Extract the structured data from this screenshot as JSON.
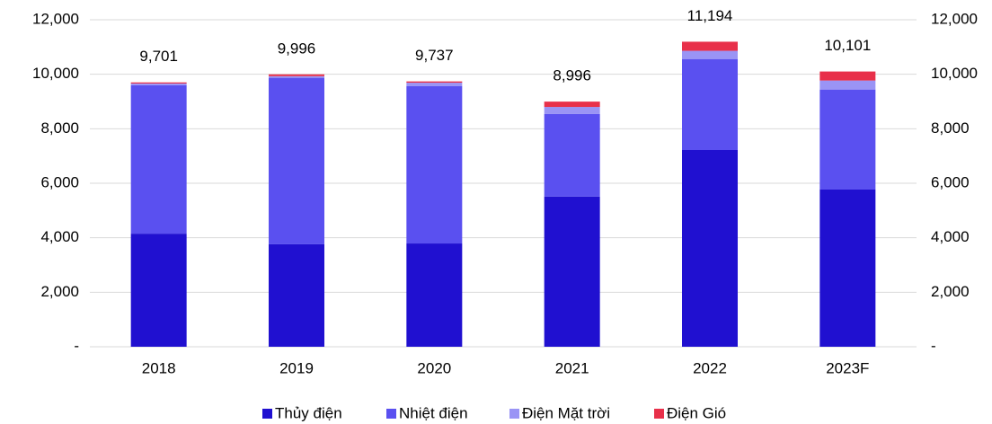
{
  "chart_data": {
    "type": "stacked_bar",
    "categories": [
      "2018",
      "2019",
      "2020",
      "2021",
      "2022",
      "2023F"
    ],
    "series": [
      {
        "name": "Thủy điện",
        "color": "#2010d0",
        "values": [
          4150,
          3760,
          3790,
          5510,
          7220,
          5770
        ]
      },
      {
        "name": "Nhiệt điện",
        "color": "#5a50f0",
        "values": [
          5450,
          6110,
          5780,
          3030,
          3340,
          3670
        ]
      },
      {
        "name": "Điện Mặt trời",
        "color": "#9a94f5",
        "values": [
          60,
          60,
          120,
          260,
          300,
          330
        ]
      },
      {
        "name": "Điện Gió",
        "color": "#e8304a",
        "values": [
          41,
          66,
          47,
          196,
          334,
          331
        ]
      }
    ],
    "totals": [
      9701,
      9996,
      9737,
      8996,
      11194,
      10101
    ],
    "value_labels": [
      "9,701",
      "9,996",
      "9,737",
      "8,996",
      "11,194",
      "10,101"
    ],
    "ylim": [
      0,
      12000
    ],
    "yticks": [
      {
        "value": 0,
        "label": "-"
      },
      {
        "value": 2000,
        "label": "2,000"
      },
      {
        "value": 4000,
        "label": "4,000"
      },
      {
        "value": 6000,
        "label": "6,000"
      },
      {
        "value": 8000,
        "label": "8,000"
      },
      {
        "value": 10000,
        "label": "10,000"
      },
      {
        "value": 12000,
        "label": "12,000"
      }
    ],
    "y2lim": [
      0,
      12000
    ],
    "y2ticks": [
      {
        "value": 0,
        "label": "-"
      },
      {
        "value": 2000,
        "label": "2,000"
      },
      {
        "value": 4000,
        "label": "4,000"
      },
      {
        "value": 6000,
        "label": "6,000"
      },
      {
        "value": 8000,
        "label": "8,000"
      },
      {
        "value": 10000,
        "label": "10,000"
      },
      {
        "value": 12000,
        "label": "12,000"
      }
    ],
    "grid": true,
    "legend": "bottom"
  }
}
